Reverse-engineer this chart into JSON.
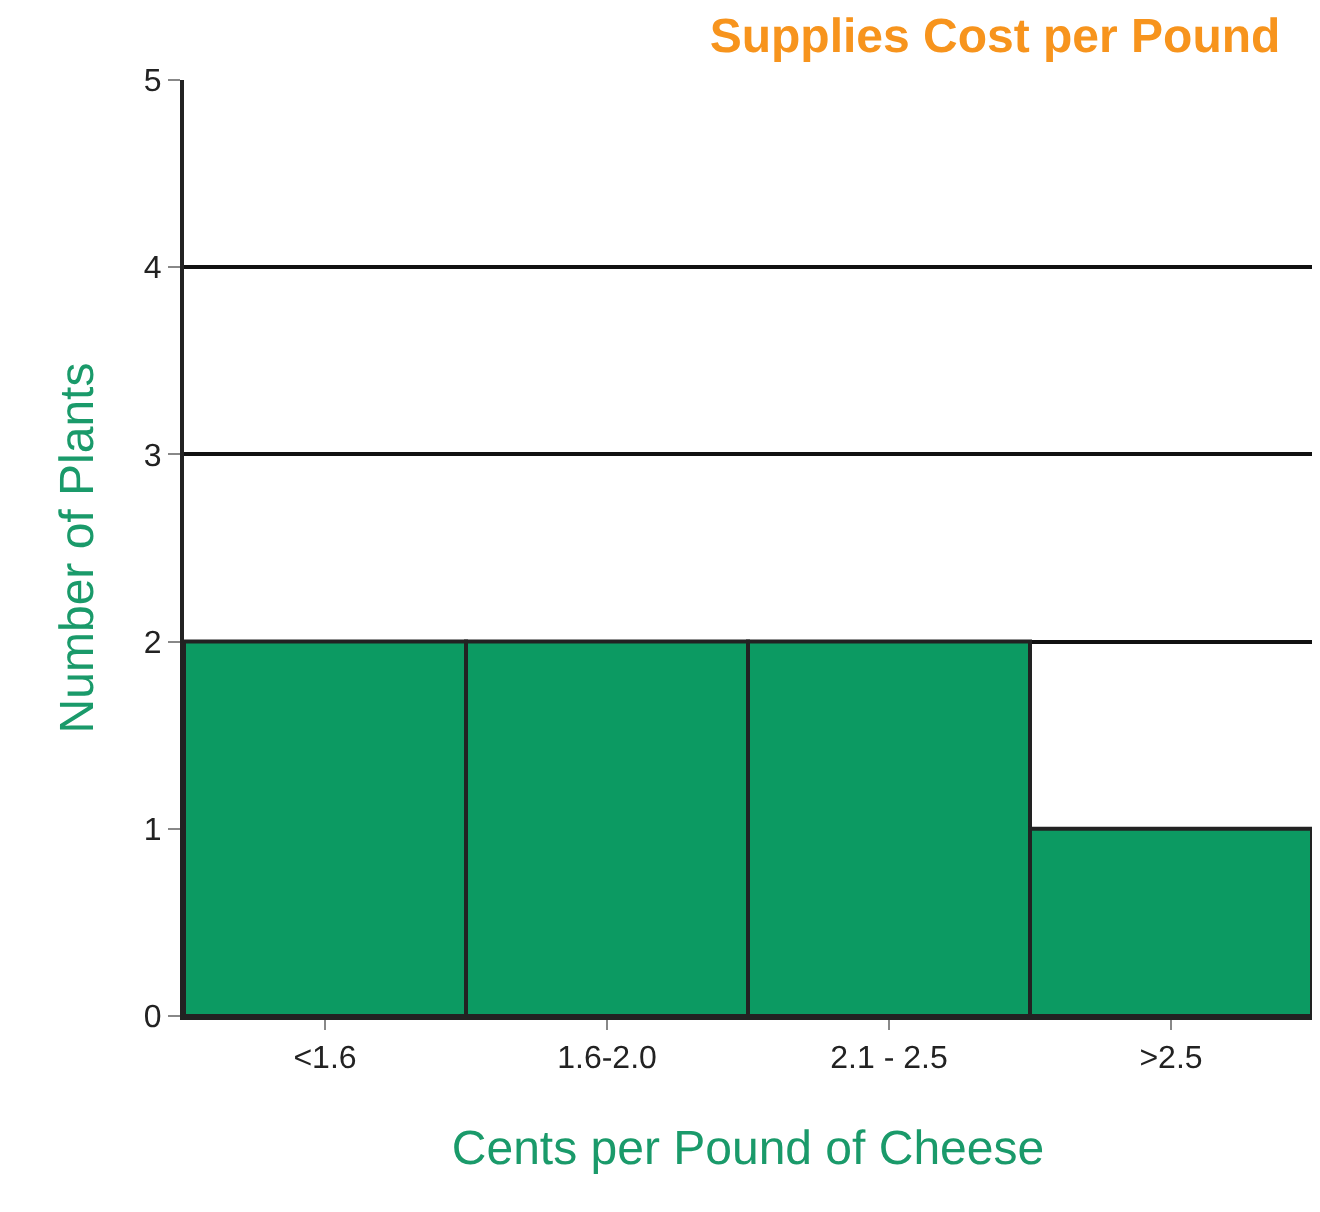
{
  "chart_data": {
    "type": "bar",
    "title": "Supplies Cost per Pound",
    "xlabel": "Cents per Pound of Cheese",
    "ylabel": "Number of Plants",
    "categories": [
      "<1.6",
      "1.6-2.0",
      "2.1 - 2.5",
      ">2.5"
    ],
    "values": [
      2,
      2,
      2,
      1
    ],
    "color": "#0c9a62",
    "ylim": [
      0,
      5
    ],
    "yticks": [
      0,
      1,
      2,
      3,
      4,
      5
    ],
    "grid": "y",
    "legend": false
  }
}
